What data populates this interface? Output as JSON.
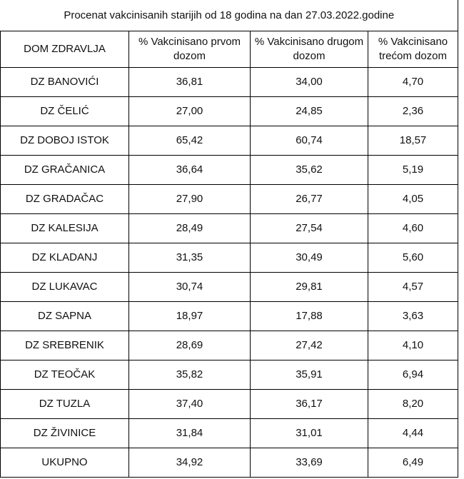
{
  "table": {
    "title": "Procenat vakcinisanih starijih od 18 godina na dan 27.03.2022.godine",
    "header": [
      "DOM ZDRAVLJA",
      "% Vakcinisano prvom dozom",
      "% Vakcinisano drugom dozom",
      "% Vakcinisano trećom dozom"
    ],
    "rows": [
      [
        "DZ BANOVIĆI",
        "36,81",
        "34,00",
        "4,70"
      ],
      [
        "DZ ČELIĆ",
        "27,00",
        "24,85",
        "2,36"
      ],
      [
        "DZ DOBOJ ISTOK",
        "65,42",
        "60,74",
        "18,57"
      ],
      [
        "DZ GRAČANICA",
        "36,64",
        "35,62",
        "5,19"
      ],
      [
        "DZ GRADAČAC",
        "27,90",
        "26,77",
        "4,05"
      ],
      [
        "DZ KALESIJA",
        "28,49",
        "27,54",
        "4,60"
      ],
      [
        "DZ KLADANJ",
        "31,35",
        "30,49",
        "5,60"
      ],
      [
        "DZ LUKAVAC",
        "30,74",
        "29,81",
        "4,57"
      ],
      [
        "DZ SAPNA",
        "18,97",
        "17,88",
        "3,63"
      ],
      [
        "DZ SREBRENIK",
        "28,69",
        "27,42",
        "4,10"
      ],
      [
        "DZ TEOČAK",
        "35,82",
        "35,91",
        "6,94"
      ],
      [
        "DZ TUZLA",
        "37,40",
        "36,17",
        "8,20"
      ],
      [
        "DZ ŽIVINICE",
        "31,84",
        "31,01",
        "4,44"
      ],
      [
        "UKUPNO",
        "34,92",
        "33,69",
        "6,49"
      ]
    ]
  }
}
